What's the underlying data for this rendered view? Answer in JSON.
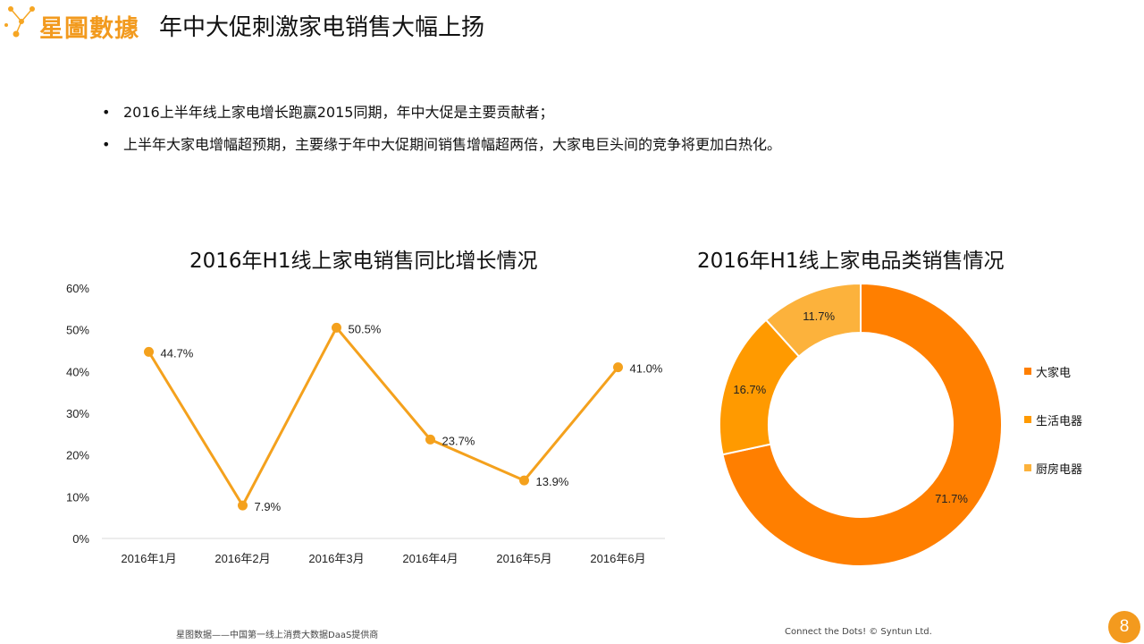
{
  "header": {
    "logo_text": "星圖數據",
    "title": "年中大促刺激家电销售大幅上扬"
  },
  "bullets": [
    "2016上半年线上家电增长跑赢2015同期，年中大促是主要贡献者；",
    "上半年大家电增幅超预期，主要缘于年中大促期间销售增幅超两倍，大家电巨头间的竞争将更加白热化。"
  ],
  "chart_data": [
    {
      "type": "line",
      "title": "2016年H1线上家电销售同比增长情况",
      "categories": [
        "2016年1月",
        "2016年2月",
        "2016年3月",
        "2016年4月",
        "2016年5月",
        "2016年6月"
      ],
      "series": [
        {
          "values": [
            44.7,
            7.9,
            50.5,
            23.7,
            13.9,
            41.0
          ],
          "color": "#f4a11d"
        }
      ],
      "data_labels": [
        "44.7%",
        "7.9%",
        "50.5%",
        "23.7%",
        "13.9%",
        "41.0%"
      ],
      "yticks": [
        "0%",
        "10%",
        "20%",
        "30%",
        "40%",
        "50%",
        "60%"
      ],
      "ylim": [
        0,
        60
      ],
      "grid": false
    },
    {
      "type": "pie",
      "title": "2016年H1线上家电品类销售情况",
      "labels": [
        "大家电",
        "生活电器",
        "厨房电器"
      ],
      "values": [
        71.7,
        16.7,
        11.7
      ],
      "data_labels": [
        "71.7%",
        "16.7%",
        "11.7%"
      ],
      "colors": [
        "#ff7f00",
        "#ff9a00",
        "#fcb23c"
      ],
      "legend": "right"
    }
  ],
  "footer": {
    "left": "星图数据——中国第一线上消费大数据DaaS提供商",
    "right": "Connect the Dots!  © Syntun Ltd.",
    "page_number": "8"
  }
}
